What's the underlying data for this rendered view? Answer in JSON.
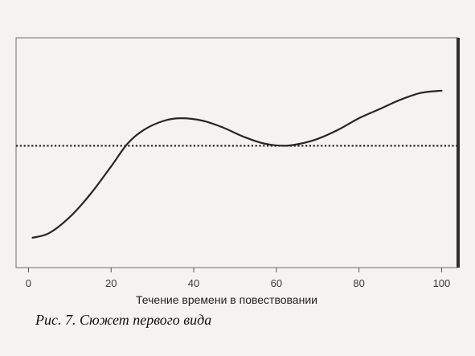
{
  "chart_data": {
    "type": "line",
    "xlabel": "Течение времени в повествовании",
    "ylabel": "",
    "xlim": [
      -3,
      104
    ],
    "ylim": [
      0,
      100
    ],
    "xticks": [
      0,
      20,
      40,
      60,
      80,
      100
    ],
    "grid": false,
    "reference_line": {
      "y": 53,
      "style": "dotted"
    },
    "series": [
      {
        "x": [
          1,
          5,
          10,
          15,
          20,
          24,
          28,
          33,
          37,
          42,
          47,
          52,
          57,
          62,
          66,
          70,
          75,
          80,
          85,
          90,
          95,
          100
        ],
        "values": [
          13,
          15,
          22,
          32,
          44,
          54,
          60,
          64,
          65,
          64,
          61,
          57,
          54,
          53,
          54,
          56,
          60,
          65,
          69,
          73,
          76,
          77
        ]
      }
    ]
  },
  "caption": "Рис. 7. Сюжет первого вида"
}
